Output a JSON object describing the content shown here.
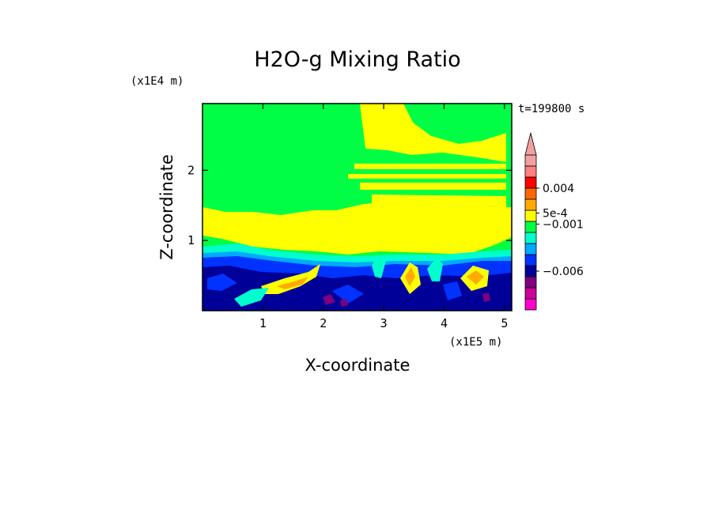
{
  "chart_data": {
    "type": "heatmap",
    "title": "H2O-g Mixing Ratio",
    "xlabel": "X-coordinate",
    "ylabel": "Z-coordinate",
    "x_scale_label": "(x1E5 m)",
    "y_scale_label": "(x1E4 m)",
    "time_label": "t=199800 s",
    "xlim": [
      0,
      5.12
    ],
    "ylim": [
      0,
      2.95
    ],
    "x_ticks": [
      {
        "value": 1,
        "label": "1"
      },
      {
        "value": 2,
        "label": "2"
      },
      {
        "value": 3,
        "label": "3"
      },
      {
        "value": 4,
        "label": "4"
      },
      {
        "value": 5,
        "label": "5"
      }
    ],
    "y_ticks": [
      {
        "value": 1,
        "label": "1"
      },
      {
        "value": 2,
        "label": "2"
      }
    ],
    "colorbar": {
      "colors": [
        "#ff00cc",
        "#cc0099",
        "#7f007f",
        "#000099",
        "#0033ff",
        "#00aaff",
        "#00ffcc",
        "#00ff44",
        "#ffff00",
        "#ffaa00",
        "#ff6600",
        "#ff0000",
        "#ff8080",
        "#f0a0a0"
      ],
      "labels": [
        {
          "text": "0.004",
          "slot": 11
        },
        {
          "text": "5e-4",
          "slot": 8.75
        },
        {
          "text": "−0.001",
          "slot": 7.75
        },
        {
          "text": "−0.006",
          "slot": 3.5
        }
      ],
      "extend": "max"
    },
    "colors": {
      "background_field": "#00ff44",
      "upper_layer": "#ffff00",
      "boundary_layer": "#000099"
    }
  }
}
